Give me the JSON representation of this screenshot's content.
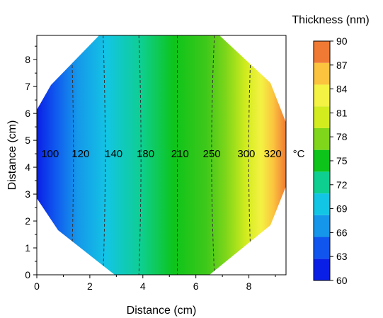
{
  "chart_data": {
    "type": "heatmap",
    "xlabel": "Distance (cm)",
    "ylabel": "Distance (cm)",
    "xlim": [
      0,
      9.4
    ],
    "ylim": [
      0,
      8.9
    ],
    "x_ticks": [
      "0",
      "2",
      "4",
      "6",
      "8"
    ],
    "y_ticks": [
      "0",
      "1",
      "2",
      "3",
      "4",
      "5",
      "6",
      "7",
      "8"
    ],
    "colorbar": {
      "title": "Thickness (nm)",
      "levels": [
        "60",
        "63",
        "66",
        "69",
        "72",
        "75",
        "78",
        "81",
        "84",
        "87",
        "90"
      ],
      "colors": [
        "#0a1fe6",
        "#0f55ee",
        "#1596ea",
        "#13c5e4",
        "#0ecf90",
        "#0dc41a",
        "#7fd61a",
        "#d2ec1e",
        "#f4f243",
        "#fbc33e",
        "#f07a34"
      ]
    },
    "shape": "dodecagon",
    "temperature_labels": [
      "100",
      "120",
      "140",
      "180",
      "210",
      "250",
      "300",
      "320"
    ],
    "temperature_label_x": [
      0.5,
      1.65,
      2.9,
      4.1,
      5.4,
      6.6,
      7.9,
      8.9
    ],
    "temperature_unit": "°C",
    "label_y": 4.5,
    "contour_lines_x": [
      1.3,
      2.5,
      3.85,
      5.3,
      6.7,
      8.1
    ]
  }
}
